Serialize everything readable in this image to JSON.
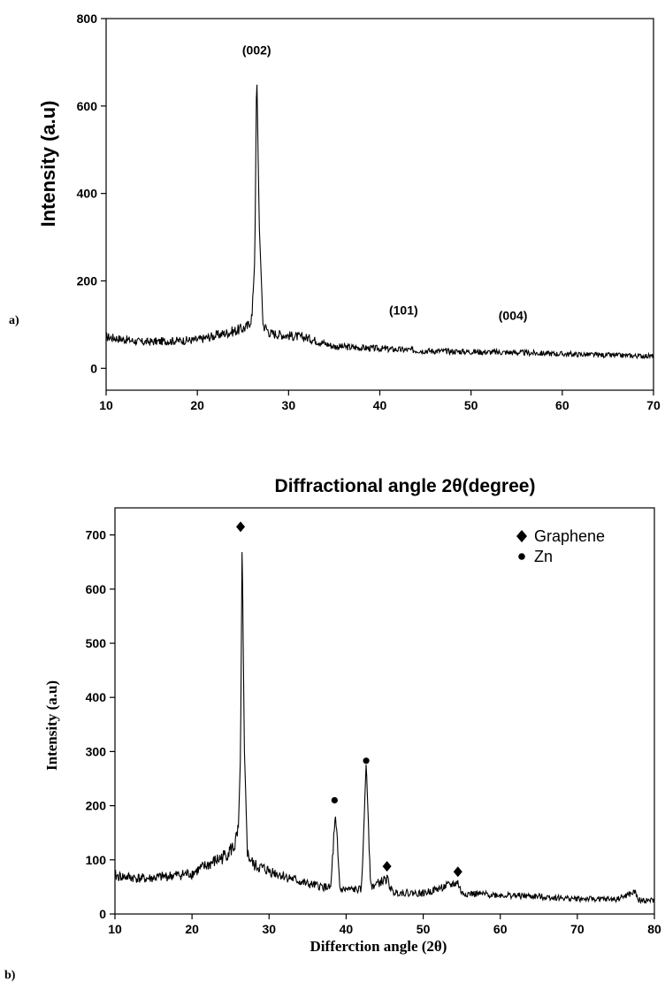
{
  "chart_data": [
    {
      "panel_label": "a)",
      "type": "line",
      "xlabel": "Diffractional angle 2θ(degree)",
      "ylabel": "Intensity (a.u)",
      "xlim": [
        10,
        70
      ],
      "ylim": [
        -50,
        800
      ],
      "xticks": [
        "10",
        "20",
        "30",
        "40",
        "50",
        "60",
        "70"
      ],
      "yticks": [
        "0",
        "200",
        "400",
        "600",
        "800"
      ],
      "grid": false,
      "series_color": "#000000",
      "baseline": [
        [
          10,
          72
        ],
        [
          14,
          60
        ],
        [
          20,
          65
        ],
        [
          24,
          85
        ],
        [
          25.5,
          95
        ],
        [
          26,
          120
        ],
        [
          26.3,
          250
        ],
        [
          26.5,
          690
        ],
        [
          26.8,
          320
        ],
        [
          27.2,
          100
        ],
        [
          28,
          80
        ],
        [
          32,
          70
        ],
        [
          35,
          50
        ],
        [
          40,
          45
        ],
        [
          45,
          40
        ],
        [
          50,
          38
        ],
        [
          55,
          36
        ],
        [
          60,
          33
        ],
        [
          65,
          30
        ],
        [
          70,
          28
        ]
      ],
      "peaks": [
        {
          "x": 26.5,
          "y": 690,
          "label": "(002)"
        },
        {
          "x": 42.6,
          "y": 70,
          "label": "(101)"
        },
        {
          "x": 54.6,
          "y": 58,
          "label": "(004)"
        }
      ]
    },
    {
      "panel_label": "b)",
      "type": "line",
      "xlabel": "Differction angle (2θ)",
      "ylabel": "Intensity (a.u)",
      "xlim": [
        10,
        80
      ],
      "ylim": [
        0,
        750
      ],
      "xticks": [
        "10",
        "20",
        "30",
        "40",
        "50",
        "60",
        "70",
        "80"
      ],
      "yticks": [
        "0",
        "100",
        "200",
        "300",
        "400",
        "500",
        "600",
        "700"
      ],
      "grid": false,
      "series_color": "#000000",
      "legend": {
        "position": "top-right",
        "entries": [
          {
            "name": "Graphene",
            "marker": "diamond"
          },
          {
            "name": "Zn",
            "marker": "circle"
          }
        ]
      },
      "baseline": [
        [
          10,
          70
        ],
        [
          14,
          65
        ],
        [
          20,
          75
        ],
        [
          24,
          105
        ],
        [
          25.5,
          125
        ],
        [
          26,
          150
        ],
        [
          26.3,
          300
        ],
        [
          26.5,
          690
        ],
        [
          26.8,
          300
        ],
        [
          27.2,
          110
        ],
        [
          28,
          90
        ],
        [
          32,
          70
        ],
        [
          35,
          55
        ],
        [
          38,
          48
        ],
        [
          38.6,
          185
        ],
        [
          39.2,
          45
        ],
        [
          42,
          45
        ],
        [
          42.6,
          280
        ],
        [
          43.2,
          50
        ],
        [
          45.3,
          65
        ],
        [
          46,
          40
        ],
        [
          50,
          38
        ],
        [
          54.5,
          58
        ],
        [
          55,
          38
        ],
        [
          60,
          35
        ],
        [
          65,
          32
        ],
        [
          70,
          28
        ],
        [
          75,
          27
        ],
        [
          77.5,
          40
        ],
        [
          78,
          25
        ],
        [
          80,
          25
        ]
      ],
      "markers": [
        {
          "x": 26.3,
          "y": 715,
          "phase": "Graphene"
        },
        {
          "x": 38.5,
          "y": 210,
          "phase": "Zn"
        },
        {
          "x": 42.6,
          "y": 283,
          "phase": "Zn"
        },
        {
          "x": 45.3,
          "y": 88,
          "phase": "Graphene"
        },
        {
          "x": 54.5,
          "y": 78,
          "phase": "Graphene"
        }
      ]
    }
  ]
}
